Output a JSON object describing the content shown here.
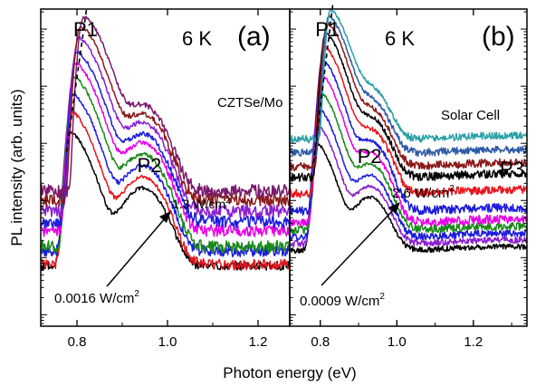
{
  "figure": {
    "xlabel": "Photon energy (eV)",
    "ylabel": "PL intensity (arb. units)"
  },
  "chart_data": [
    {
      "type": "line",
      "panel": "(a)",
      "temperature": "6 K",
      "sample": "CZTSe/Mo",
      "xlim": [
        0.72,
        1.27
      ],
      "ylog": true,
      "ylim_decades": [
        -5.2,
        0.35
      ],
      "xticks": [
        "0.8",
        "1.0",
        "1.2"
      ],
      "peak_labels": [
        {
          "name": "P1",
          "x": 0.82
        },
        {
          "name": "P2",
          "x": 0.95
        }
      ],
      "power_low": "0.0016 W/cm",
      "power_high": "1.3 W/cm",
      "power_unit_exp": "2",
      "series": [
        {
          "color": "#000000",
          "peak_x": 0.785,
          "peak_log": -1.8,
          "p2_log": -2.8,
          "floor_log": -4.4
        },
        {
          "color": "#e8141c",
          "peak_x": 0.788,
          "peak_log": -1.45,
          "p2_log": -2.6,
          "floor_log": -4.6
        },
        {
          "color": "#1c1cdc",
          "peak_x": 0.791,
          "peak_log": -1.15,
          "p2_log": -2.4,
          "floor_log": -4.3
        },
        {
          "color": "#1a8a1a",
          "peak_x": 0.794,
          "peak_log": -0.85,
          "p2_log": -2.2,
          "floor_log": -4.55
        },
        {
          "color": "#e600e6",
          "peak_x": 0.797,
          "peak_log": -0.6,
          "p2_log": -2.0,
          "floor_log": -4.0
        },
        {
          "color": "#1c1cdc",
          "peak_x": 0.8,
          "peak_log": -0.4,
          "p2_log": -1.85,
          "floor_log": -3.85
        },
        {
          "color": "#8b1fd0",
          "peak_x": 0.804,
          "peak_log": -0.15,
          "p2_log": -1.65,
          "floor_log": -3.7
        },
        {
          "color": "#8b1a1a",
          "peak_x": 0.808,
          "peak_log": 0.05,
          "p2_log": -1.5,
          "floor_log": -3.4
        },
        {
          "color": "#7a1a6e",
          "peak_x": 0.815,
          "peak_log": 0.22,
          "p2_log": -1.35,
          "floor_log": -3.25
        }
      ]
    },
    {
      "type": "line",
      "panel": "(b)",
      "temperature": "6 K",
      "sample": "Solar Cell",
      "xlim": [
        0.72,
        1.34
      ],
      "ylog": true,
      "ylim_decades": [
        -5.2,
        0.35
      ],
      "xticks": [
        "0.8",
        "1.0",
        "1.2"
      ],
      "peak_labels": [
        {
          "name": "P1",
          "x": 0.82
        },
        {
          "name": "P2",
          "x": 0.93
        },
        {
          "name": "P3",
          "x": 1.28
        }
      ],
      "power_low": "0.0009 W/cm",
      "power_high": "2.6 W/cm",
      "power_unit_exp": "2",
      "series": [
        {
          "color": "#000000",
          "peak_x": 0.79,
          "peak_log": -2.0,
          "p2_log": -3.0,
          "p3_log": -4.0
        },
        {
          "color": "#8b1fd0",
          "peak_x": 0.793,
          "peak_log": -1.7,
          "p2_log": -2.8,
          "p3_log": -3.9
        },
        {
          "color": "#1c1cdc",
          "peak_x": 0.796,
          "peak_log": -1.4,
          "p2_log": -2.6,
          "p3_log": -3.8
        },
        {
          "color": "#1a8a1a",
          "peak_x": 0.8,
          "peak_log": -1.1,
          "p2_log": -2.4,
          "p3_log": -3.7
        },
        {
          "color": "#e600e6",
          "peak_x": 0.803,
          "peak_log": -0.8,
          "p2_log": -2.2,
          "p3_log": -3.6
        },
        {
          "color": "#1c1cdc",
          "peak_x": 0.806,
          "peak_log": -0.55,
          "p2_log": -2.0,
          "p3_log": -3.4
        },
        {
          "color": "#e8141c",
          "peak_x": 0.81,
          "peak_log": -0.3,
          "p2_log": -1.8,
          "p3_log": -3.05
        },
        {
          "color": "#000000",
          "peak_x": 0.814,
          "peak_log": -0.08,
          "p2_log": -1.6,
          "p3_log": -2.75
        },
        {
          "color": "#8b1a1a",
          "peak_x": 0.818,
          "peak_log": 0.1,
          "p2_log": -1.45,
          "p3_log": -2.55
        },
        {
          "color": "#2d5aa6",
          "peak_x": 0.822,
          "peak_log": 0.22,
          "p2_log": -1.3,
          "p3_log": -2.3
        },
        {
          "color": "#2ba0a8",
          "peak_x": 0.827,
          "peak_log": 0.33,
          "p2_log": -1.1,
          "p3_log": -2.05
        }
      ]
    }
  ]
}
